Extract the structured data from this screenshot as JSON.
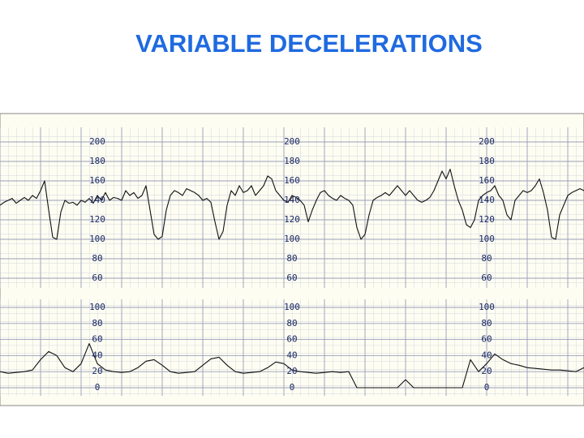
{
  "title": "VARIABLE DECELERATIONS",
  "chart_data": [
    {
      "type": "line",
      "color": "#111111",
      "ylim": [
        50,
        210
      ],
      "yticks": [
        60,
        80,
        100,
        120,
        140,
        160,
        180,
        200
      ],
      "grid": true,
      "values": [
        135,
        138,
        140,
        142,
        137,
        140,
        143,
        140,
        145,
        142,
        150,
        160,
        130,
        102,
        100,
        128,
        140,
        137,
        138,
        135,
        140,
        138,
        142,
        137,
        145,
        140,
        148,
        140,
        143,
        142,
        140,
        150,
        145,
        148,
        142,
        145,
        155,
        130,
        105,
        100,
        103,
        130,
        145,
        150,
        148,
        145,
        152,
        150,
        148,
        145,
        140,
        142,
        138,
        118,
        100,
        108,
        135,
        150,
        145,
        155,
        148,
        150,
        155,
        145,
        150,
        155,
        165,
        162,
        150,
        145,
        140,
        138,
        145,
        143,
        140,
        135,
        118,
        130,
        140,
        148,
        150,
        145,
        142,
        140,
        145,
        142,
        140,
        135,
        112,
        100,
        105,
        125,
        140,
        143,
        145,
        148,
        145,
        150,
        155,
        150,
        145,
        150,
        145,
        140,
        138,
        140,
        143,
        150,
        160,
        170,
        162,
        172,
        155,
        140,
        130,
        115,
        112,
        120,
        140,
        145,
        148,
        150,
        155,
        145,
        140,
        125,
        120,
        140,
        145,
        150,
        148,
        150,
        155,
        162,
        148,
        130,
        102,
        100,
        125,
        135,
        145,
        148,
        150,
        152,
        150
      ]
    },
    {
      "type": "line",
      "color": "#111111",
      "ylim": [
        0,
        100
      ],
      "yticks": [
        0,
        20,
        40,
        60,
        80,
        100
      ],
      "grid": true,
      "values": [
        20,
        18,
        19,
        20,
        22,
        35,
        45,
        40,
        25,
        20,
        30,
        55,
        30,
        22,
        20,
        19,
        20,
        25,
        33,
        35,
        28,
        20,
        18,
        19,
        20,
        28,
        36,
        38,
        28,
        20,
        18,
        19,
        20,
        25,
        32,
        30,
        22,
        20,
        19,
        18,
        19,
        20,
        19,
        20,
        0,
        0,
        0,
        0,
        0,
        0,
        10,
        0,
        0,
        0,
        0,
        0,
        0,
        0,
        35,
        20,
        30,
        42,
        35,
        30,
        28,
        25,
        24,
        23,
        22,
        22,
        21,
        20,
        25
      ]
    }
  ]
}
